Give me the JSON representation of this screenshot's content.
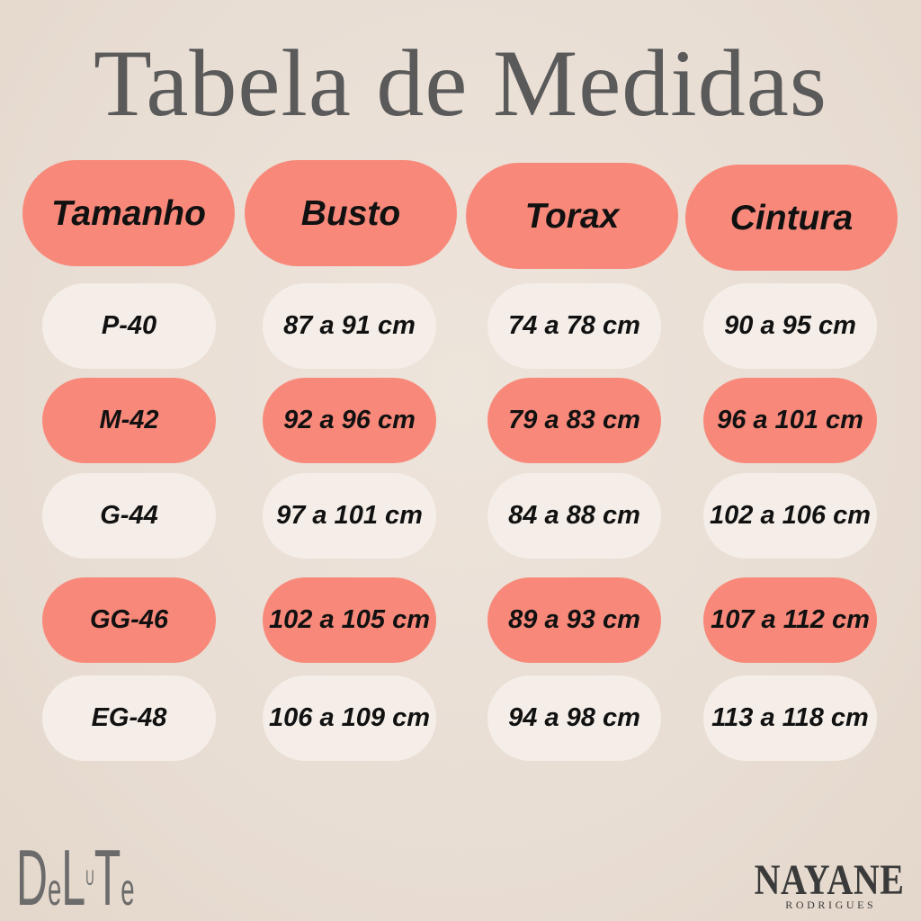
{
  "chart_data": {
    "type": "table",
    "title": "Tabela de Medidas",
    "columns": [
      "Tamanho",
      "Busto",
      "Torax",
      "Cintura"
    ],
    "rows": [
      [
        "P-40",
        "87 a 91 cm",
        "74 a 78 cm",
        "90 a 95 cm"
      ],
      [
        "M-42",
        "92 a 96 cm",
        "79 a 83 cm",
        "96 a 101 cm"
      ],
      [
        "G-44",
        "97 a 101 cm",
        "84 a 88 cm",
        "102 a 106 cm"
      ],
      [
        "GG-46",
        "102 a 105 cm",
        "89 a 93 cm",
        "107 a 112 cm"
      ],
      [
        "EG-48",
        "106 a 109 cm",
        "94 a 98 cm",
        "113 a 118 cm"
      ]
    ]
  },
  "logos": {
    "left": [
      "De",
      "L",
      "U",
      "Te"
    ],
    "right": {
      "name": "NAYANE",
      "subtitle": "RODRIGUES"
    }
  },
  "colors": {
    "background": "#e8ddd3",
    "accent": "#f8897a",
    "cell_light": "#f5eee8",
    "title": "#5a5a5a",
    "text": "#111111",
    "logo_left": "#6b6b6b",
    "logo_right": "#3a3a3a"
  }
}
